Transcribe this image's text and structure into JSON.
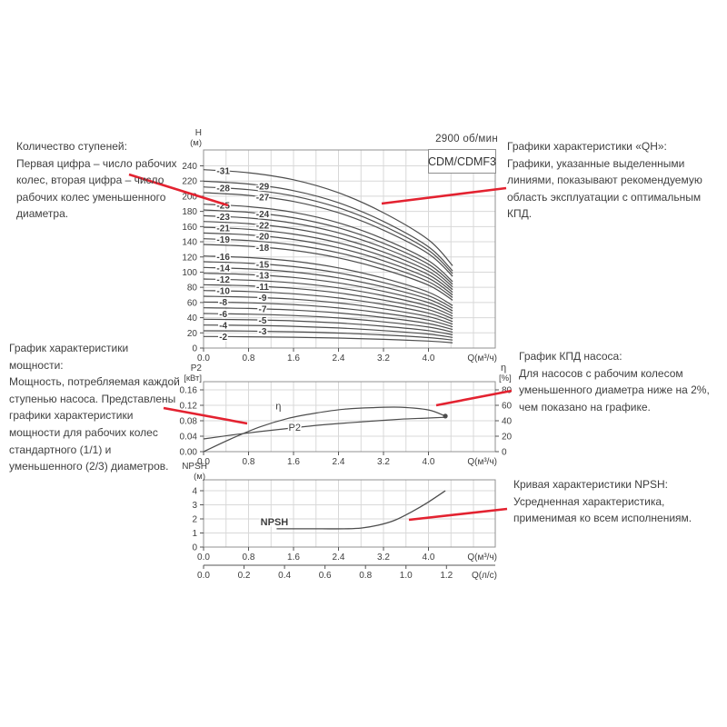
{
  "colors": {
    "red": "#e32230",
    "curve": "#4d4d4d",
    "grid": "#d8d8d8",
    "axis": "#909090",
    "tick": "#555555",
    "text": "#3d3d3d"
  },
  "header": {
    "speed": "2900 об/мин",
    "model": "CDM/CDMF3"
  },
  "annotations": {
    "stages": {
      "title": "Количество ступеней:",
      "body": "Первая цифра – число рабочих колес, вторая цифра – число рабочих колес уменьшенного диаметра."
    },
    "qh": {
      "title": "Графики характеристики «QH»:",
      "body": "Графики, указанные выделенными линиями, показывают рекомендуемую область эксплуатации с оптимальным КПД."
    },
    "power": {
      "title": "График характеристики мощности:",
      "body": "Мощность, потребляемая каждой ступенью насоса. Представлены графики характеристики мощности для рабочих колес стандартного (1/1) и уменьшенного (2/3) диаметров."
    },
    "eff": {
      "title": "График КПД насоса:",
      "body": "Для насосов с рабочим колесом уменьшенного диаметра ниже на 2%, чем показано на графике."
    },
    "npsh": {
      "title": "Кривая характеристики NPSH:",
      "body": "Усредненная характеристика, применимая ко всем исполнениям."
    }
  },
  "chart_data": [
    {
      "id": "qh",
      "type": "line",
      "ylabel_lines": [
        "H",
        "(м)"
      ],
      "xlabel": "Q(м³/ч)",
      "y_ticks": [
        "0",
        "20",
        "40",
        "60",
        "80",
        "100",
        "120",
        "140",
        "160",
        "180",
        "200",
        "220",
        "240"
      ],
      "x_ticks": [
        "0.0",
        "0.8",
        "1.6",
        "2.4",
        "3.2",
        "4.0"
      ],
      "ylim": [
        0,
        240
      ],
      "xlim": [
        0,
        5.2
      ],
      "stages": [
        2,
        3,
        4,
        5,
        6,
        7,
        8,
        9,
        10,
        11,
        12,
        13,
        14,
        15,
        16,
        18,
        19,
        20,
        21,
        22,
        23,
        24,
        25,
        27,
        28,
        29,
        31
      ],
      "per_stage_head": {
        "q": [
          0,
          0.8,
          1.6,
          2.4,
          3.2,
          4.0,
          4.43
        ],
        "h": [
          7.58,
          7.45,
          7.15,
          6.6,
          5.75,
          4.6,
          3.5
        ]
      },
      "label_columns": {
        "left": {
          "q": 0.35,
          "stages": [
            2,
            4,
            6,
            8,
            10,
            12,
            14,
            16,
            19,
            21,
            23,
            25,
            28,
            31
          ]
        },
        "right": {
          "q": 1.05,
          "stages": [
            3,
            5,
            7,
            9,
            11,
            13,
            15,
            18,
            20,
            22,
            24,
            27,
            29
          ]
        }
      }
    },
    {
      "id": "power_eff",
      "type": "line",
      "left_axis": {
        "label_lines": [
          "P2",
          "[кВт]"
        ],
        "ticks": [
          "0.00",
          "0.04",
          "0.08",
          "0.12",
          "0.16"
        ]
      },
      "right_axis": {
        "label_lines": [
          "η",
          "[%]"
        ],
        "ticks": [
          "0",
          "20",
          "40",
          "60",
          "80"
        ]
      },
      "xlabel": "Q(м³/ч)",
      "x_ticks": [
        "0.0",
        "0.8",
        "1.6",
        "2.4",
        "3.2",
        "4.0"
      ],
      "series": [
        {
          "name": "P2",
          "axis": "left",
          "label_at": {
            "q": 1.62,
            "v": 0.062
          },
          "q": [
            0,
            0.5,
            1.0,
            1.5,
            2.0,
            2.5,
            3.0,
            3.5,
            4.0,
            4.3
          ],
          "v": [
            0.033,
            0.043,
            0.052,
            0.06,
            0.068,
            0.074,
            0.079,
            0.084,
            0.087,
            0.089
          ]
        },
        {
          "name": "η",
          "axis": "right",
          "end_dot": true,
          "label_at": {
            "q": 1.33,
            "v": 59
          },
          "q": [
            0,
            0.5,
            1.0,
            1.5,
            2.0,
            2.5,
            3.0,
            3.5,
            4.0,
            4.3
          ],
          "v": [
            0,
            17,
            32,
            43,
            50,
            55,
            57,
            57.5,
            54,
            46
          ]
        }
      ]
    },
    {
      "id": "npsh",
      "type": "line",
      "left_axis": {
        "label_lines": [
          "NPSH",
          "(м)"
        ],
        "ticks": [
          "0",
          "1",
          "2",
          "3",
          "4"
        ]
      },
      "xlabel": "Q(м³/ч)",
      "x_ticks": [
        "0.0",
        "0.8",
        "1.6",
        "2.4",
        "3.2",
        "4.0"
      ],
      "series": [
        {
          "name": "NPSH",
          "bold_label": true,
          "label_at": {
            "q": 1.26,
            "v": 1.78
          },
          "q": [
            1.3,
            1.7,
            2.1,
            2.5,
            2.8,
            3.1,
            3.4,
            3.7,
            4.0,
            4.3
          ],
          "v": [
            1.3,
            1.3,
            1.3,
            1.3,
            1.35,
            1.55,
            1.9,
            2.5,
            3.2,
            4.0
          ]
        }
      ],
      "second_scale": {
        "ticks": [
          "0.0",
          "0.2",
          "0.4",
          "0.6",
          "0.8",
          "1.0",
          "1.2"
        ],
        "label": "Q(л/с)"
      }
    }
  ]
}
